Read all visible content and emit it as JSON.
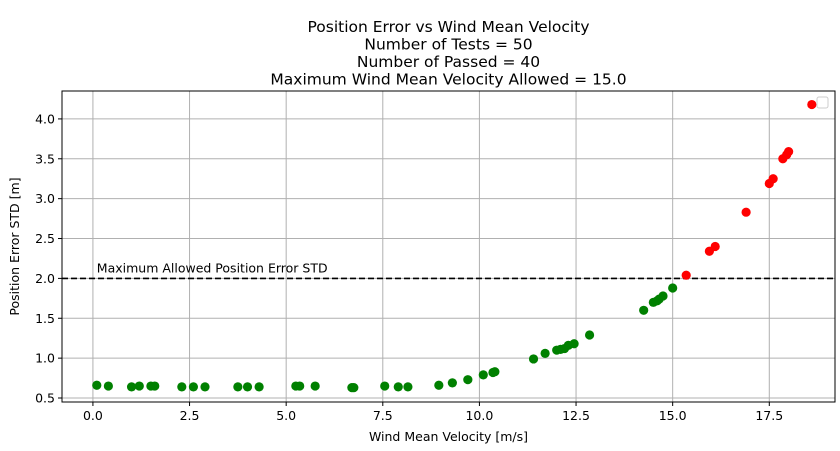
{
  "chart_data": {
    "type": "scatter",
    "title_lines": [
      "Position Error vs Wind Mean Velocity",
      "Number of Tests = 50",
      "Number of Passed = 40",
      "Maximum Wind Mean Velocity Allowed = 15.0"
    ],
    "xlabel": "Wind Mean Velocity [m/s]",
    "ylabel": "Position Error STD [m]",
    "xlim": [
      -0.8,
      19.2
    ],
    "ylim": [
      0.45,
      4.35
    ],
    "xticks": [
      0.0,
      2.5,
      5.0,
      7.5,
      10.0,
      12.5,
      15.0,
      17.5
    ],
    "xtick_labels": [
      "0.0",
      "2.5",
      "5.0",
      "7.5",
      "10.0",
      "12.5",
      "15.0",
      "17.5"
    ],
    "yticks": [
      0.5,
      1.0,
      1.5,
      2.0,
      2.5,
      3.0,
      3.5,
      4.0
    ],
    "ytick_labels": [
      "0.5",
      "1.0",
      "1.5",
      "2.0",
      "2.5",
      "3.0",
      "3.5",
      "4.0"
    ],
    "grid": true,
    "legend": "top-right (empty)",
    "threshold": {
      "y": 2.0,
      "label": "Maximum Allowed Position Error STD",
      "style": "dashed",
      "color": "#000000"
    },
    "series": [
      {
        "color": "#008000",
        "x": [
          0.1,
          0.4,
          1.0,
          1.2,
          1.5,
          1.6,
          2.3,
          2.6,
          2.9,
          3.75,
          4.0,
          4.3,
          5.25,
          5.35,
          5.75,
          6.7,
          6.75,
          7.55,
          7.9,
          8.15,
          8.95,
          9.3,
          9.7,
          10.1,
          10.35,
          10.4,
          11.4,
          11.7,
          12.0,
          12.1,
          12.2,
          12.3,
          12.45,
          12.85,
          14.25,
          14.5,
          14.6,
          14.65,
          14.75,
          15.0
        ],
        "y": [
          0.66,
          0.65,
          0.64,
          0.65,
          0.65,
          0.65,
          0.64,
          0.64,
          0.64,
          0.64,
          0.64,
          0.64,
          0.65,
          0.65,
          0.65,
          0.63,
          0.63,
          0.65,
          0.64,
          0.64,
          0.66,
          0.69,
          0.73,
          0.79,
          0.82,
          0.83,
          0.99,
          1.06,
          1.1,
          1.11,
          1.12,
          1.16,
          1.18,
          1.29,
          1.6,
          1.7,
          1.72,
          1.74,
          1.78,
          1.88
        ]
      },
      {
        "color": "#ff0000",
        "x": [
          15.35,
          15.95,
          16.1,
          16.9,
          17.5,
          17.6,
          17.85,
          17.95,
          18.0,
          18.6
        ],
        "y": [
          2.04,
          2.34,
          2.4,
          2.83,
          3.19,
          3.25,
          3.5,
          3.55,
          3.59,
          4.18
        ]
      }
    ]
  }
}
